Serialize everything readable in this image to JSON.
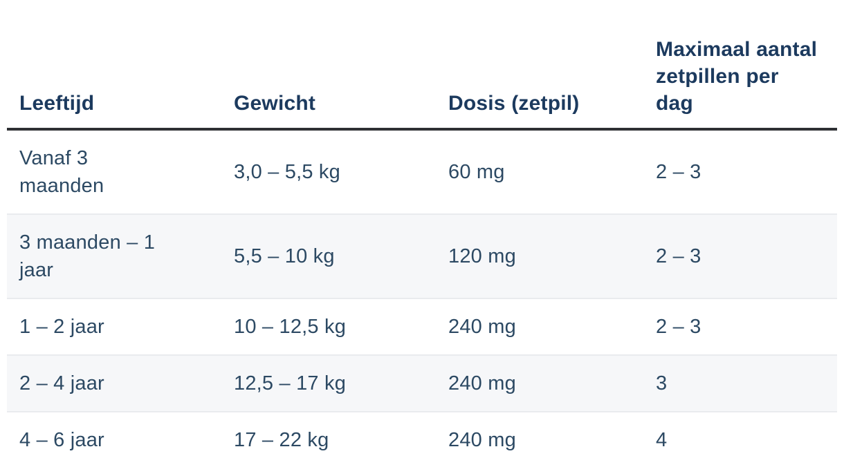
{
  "colors": {
    "header_text": "#1c3a5e",
    "body_text": "#2c4963",
    "header_rule": "#2e3033",
    "stripe_fill": "#f6f7f9",
    "stripe_edge": "#e9ebee",
    "page_background": "#ffffff"
  },
  "table": {
    "columns": [
      {
        "label": "Leeftijd"
      },
      {
        "label": "Gewicht"
      },
      {
        "label": "Dosis (zetpil)"
      },
      {
        "label": "Maximaal aantal\nzetpillen per\ndag"
      }
    ],
    "rows": [
      {
        "leeftijd": "Vanaf 3\nmaanden",
        "gewicht": "3,0 – 5,5 kg",
        "dosis": "60 mg",
        "max_zetpillen": "2 – 3"
      },
      {
        "leeftijd": "3 maanden – 1\njaar",
        "gewicht": "5,5 – 10 kg",
        "dosis": "120 mg",
        "max_zetpillen": "2 – 3"
      },
      {
        "leeftijd": "1 – 2 jaar",
        "gewicht": "10 – 12,5 kg",
        "dosis": "240 mg",
        "max_zetpillen": "2 – 3"
      },
      {
        "leeftijd": "2 – 4 jaar",
        "gewicht": "12,5 – 17 kg",
        "dosis": "240 mg",
        "max_zetpillen": "3"
      },
      {
        "leeftijd": "4 – 6 jaar",
        "gewicht": "17 – 22 kg",
        "dosis": "240 mg",
        "max_zetpillen": "4"
      }
    ]
  }
}
